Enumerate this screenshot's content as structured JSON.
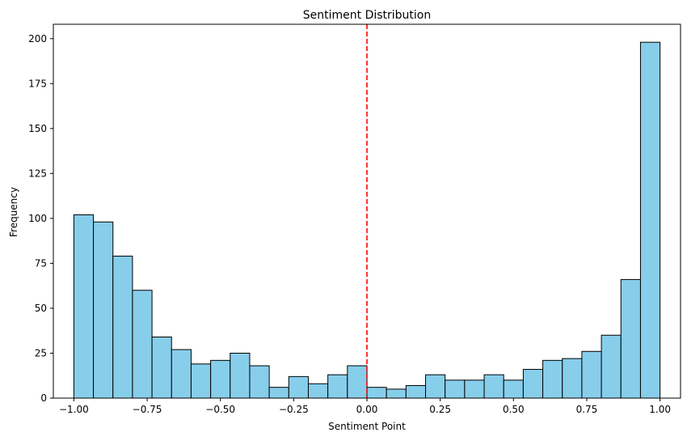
{
  "chart_data": {
    "type": "bar",
    "subtype": "histogram",
    "title": "Sentiment Distribution",
    "xlabel": "Sentiment Point",
    "ylabel": "Frequency",
    "xlim": [
      -1.07,
      1.07
    ],
    "ylim": [
      0,
      208
    ],
    "xticks": [
      -1.0,
      -0.75,
      -0.5,
      -0.25,
      0.0,
      0.25,
      0.5,
      0.75,
      1.0
    ],
    "xtick_labels": [
      "−1.00",
      "−0.75",
      "−0.50",
      "−0.25",
      "0.00",
      "0.25",
      "0.50",
      "0.75",
      "1.00"
    ],
    "yticks": [
      0,
      25,
      50,
      75,
      100,
      125,
      150,
      175,
      200
    ],
    "ytick_labels": [
      "0",
      "25",
      "50",
      "75",
      "100",
      "125",
      "150",
      "175",
      "200"
    ],
    "bins": 30,
    "range": [
      -1.0,
      1.0
    ],
    "counts": [
      102,
      98,
      79,
      60,
      34,
      27,
      19,
      21,
      25,
      18,
      6,
      12,
      8,
      13,
      18,
      6,
      5,
      7,
      13,
      10,
      10,
      13,
      10,
      16,
      21,
      22,
      26,
      35,
      66,
      198
    ],
    "bar_color": "#87ceeb",
    "edge_color": "#000000",
    "reference_line": {
      "x": 0.0,
      "color": "#ff0000",
      "style": "dashed"
    },
    "grid": false,
    "legend": false
  }
}
